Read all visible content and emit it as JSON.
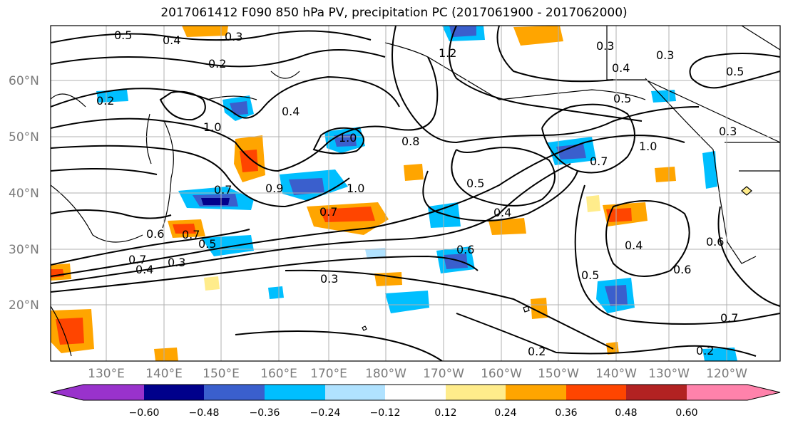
{
  "title": "2017061412 F090 850 hPa PV, precipitation PC (2017061900 - 2017062000)",
  "map": {
    "lat_labels": [
      "60°N",
      "50°N",
      "40°N",
      "30°N",
      "20°N"
    ],
    "lon_labels": [
      "130°E",
      "140°E",
      "150°E",
      "160°E",
      "170°E",
      "180°W",
      "170°W",
      "160°W",
      "150°W",
      "140°W",
      "130°W",
      "120°W"
    ],
    "contour_labels": [
      "0.2",
      "0.3",
      "0.4",
      "0.5",
      "0.6",
      "0.7",
      "0.8",
      "0.9",
      "1.0",
      "1.2"
    ]
  },
  "colorbar": {
    "colors": [
      "#9932cc",
      "#00008b",
      "#3a5fcd",
      "#00bfff",
      "#b0e2ff",
      "#ffffff",
      "#ffec8b",
      "#ffa500",
      "#ff4500",
      "#b22222",
      "#ff82ab"
    ],
    "tick_labels": [
      "−0.60",
      "−0.48",
      "−0.36",
      "−0.24",
      "−0.12",
      "0.12",
      "0.24",
      "0.36",
      "0.48",
      "0.60"
    ]
  }
}
